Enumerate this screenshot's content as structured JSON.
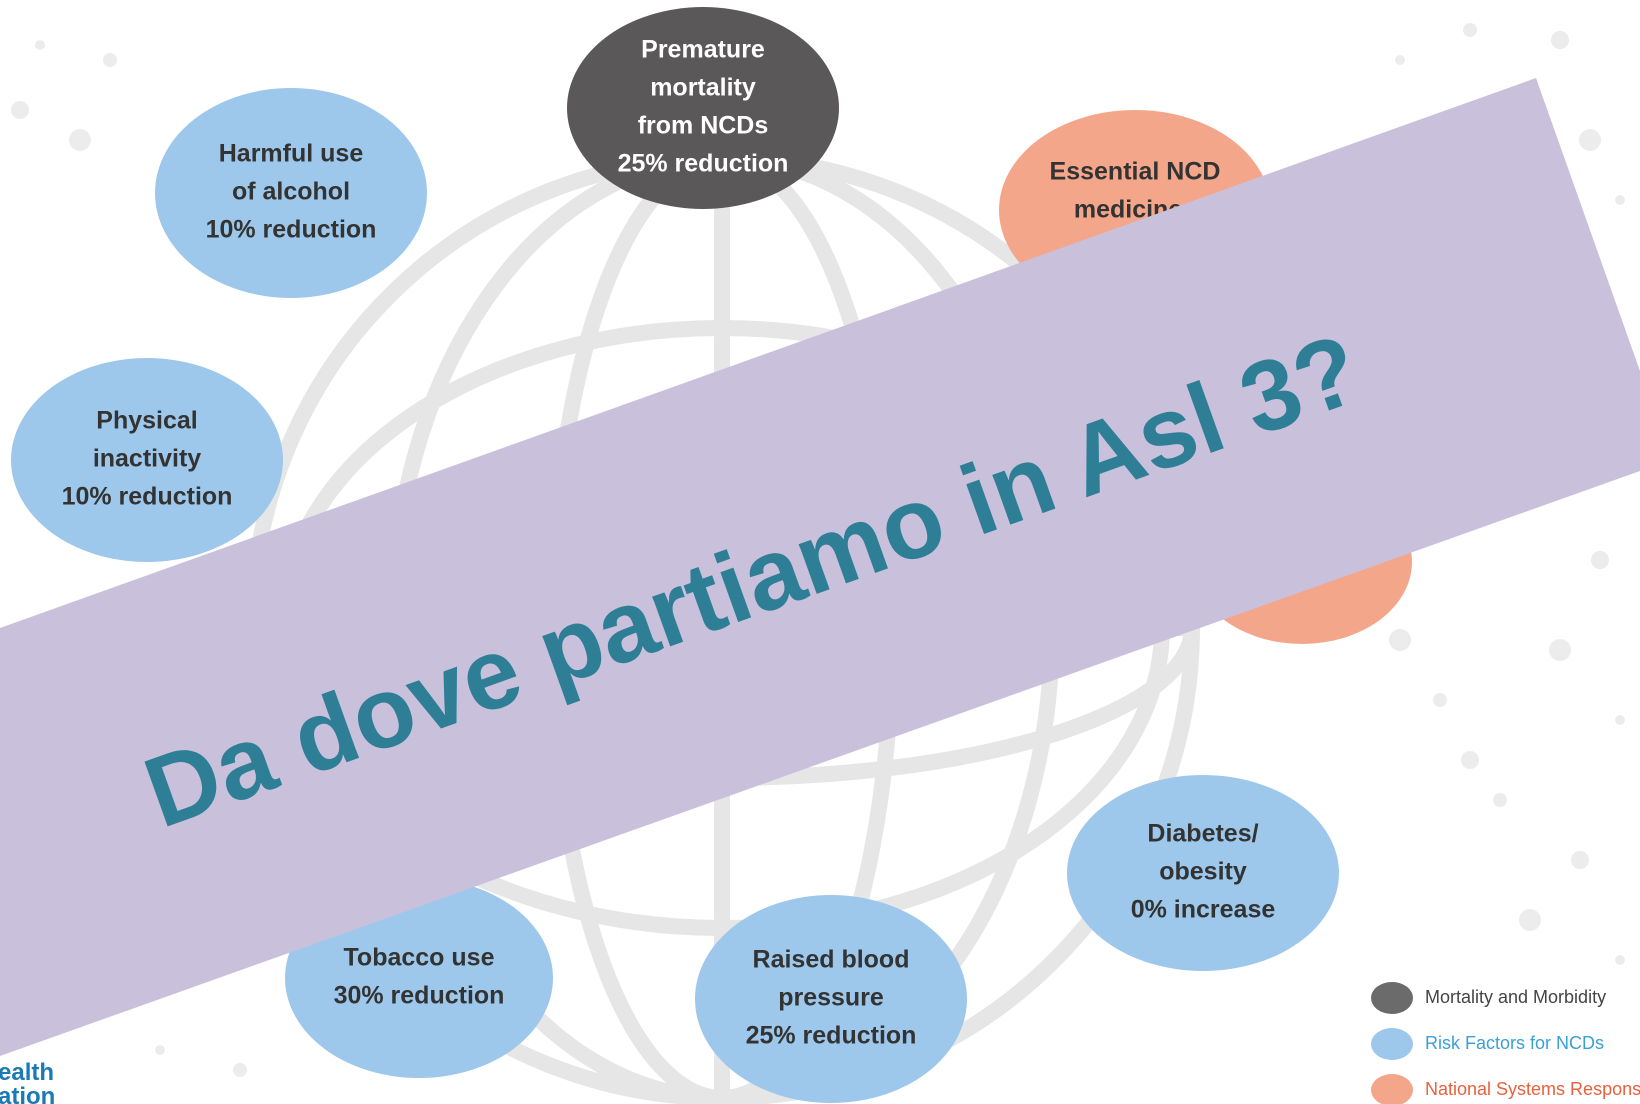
{
  "banner": {
    "text": "Da dove partiamo in Asl 3?"
  },
  "nodes": [
    {
      "lines": [
        "Premature",
        "mortality",
        "from NCDs",
        "25% reduction"
      ]
    },
    {
      "lines": [
        "Harmful use",
        "of alcohol",
        "10% reduction"
      ]
    },
    {
      "lines": [
        "Physical",
        "inactivity",
        "10% reduction"
      ]
    },
    {
      "lines": [
        "Essential NCD",
        "medicines"
      ]
    },
    {
      "lines": [
        "Diabetes/",
        "obesity",
        "0% increase"
      ]
    },
    {
      "lines": [
        "Tobacco use",
        "30% reduction"
      ]
    },
    {
      "lines": [
        "Raised blood",
        "pressure",
        "25% reduction"
      ]
    }
  ],
  "legend": [
    {
      "label": "Mortality and Morbidity"
    },
    {
      "label": "Risk Factors for NCDs"
    },
    {
      "label": "National Systems Response"
    }
  ],
  "logo": {
    "lines": [
      "ealth",
      "ation"
    ]
  }
}
